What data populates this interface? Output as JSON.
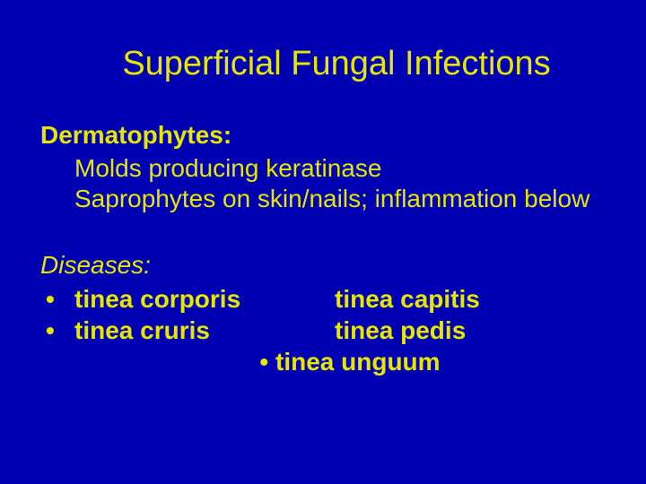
{
  "slide": {
    "background_color": "#0000b3",
    "text_color": "#e6e600",
    "title": "Superficial Fungal Infections",
    "title_fontsize": 38,
    "body_fontsize": 28,
    "dermatophytes": {
      "heading": "Dermatophytes:",
      "line1": "Molds producing keratinase",
      "line2": "Saprophytes on skin/nails;  inflammation below"
    },
    "diseases": {
      "heading": "Diseases:",
      "rows": [
        {
          "bullet": "•",
          "left": "tinea corporis",
          "right": "tinea capitis"
        },
        {
          "bullet": "•",
          "left": "tinea cruris",
          "right": "tinea pedis"
        }
      ],
      "center": "•  tinea unguum"
    }
  }
}
